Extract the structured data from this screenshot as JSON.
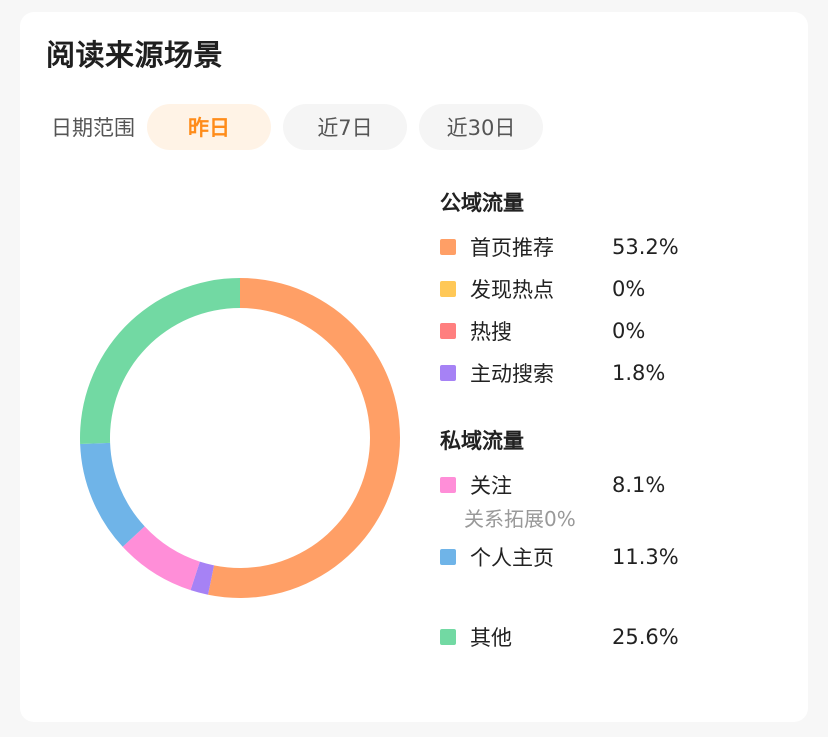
{
  "title": "阅读来源场景",
  "range": {
    "label": "日期范围",
    "tabs": [
      {
        "label": "昨日",
        "active": true
      },
      {
        "label": "近7日",
        "active": false
      },
      {
        "label": "近30日",
        "active": false
      }
    ]
  },
  "chart_data": {
    "type": "pie",
    "donut": true,
    "categories": [
      "首页推荐",
      "发现热点",
      "热搜",
      "主动搜索",
      "关注",
      "个人主页",
      "其他"
    ],
    "values": [
      53.2,
      0,
      0,
      1.8,
      8.1,
      11.3,
      25.6
    ],
    "colors": [
      "#ff9f66",
      "#ffc857",
      "#ff7f7f",
      "#a682f5",
      "#ff8ed8",
      "#6fb4e8",
      "#72d9a3"
    ],
    "unit": "%"
  },
  "legend": {
    "public": {
      "title": "公域流量",
      "items": [
        {
          "name": "首页推荐",
          "value": "53.2%",
          "color": "#ff9f66"
        },
        {
          "name": "发现热点",
          "value": "0%",
          "color": "#ffc857"
        },
        {
          "name": "热搜",
          "value": "0%",
          "color": "#ff7f7f"
        },
        {
          "name": "主动搜索",
          "value": "1.8%",
          "color": "#a682f5"
        }
      ]
    },
    "private": {
      "title": "私域流量",
      "items": [
        {
          "name": "关注",
          "value": "8.1%",
          "color": "#ff8ed8"
        },
        {
          "name": "个人主页",
          "value": "11.3%",
          "color": "#6fb4e8"
        }
      ],
      "follow_sub": "关系拓展0%"
    },
    "other": {
      "name": "其他",
      "value": "25.6%",
      "color": "#72d9a3"
    }
  }
}
